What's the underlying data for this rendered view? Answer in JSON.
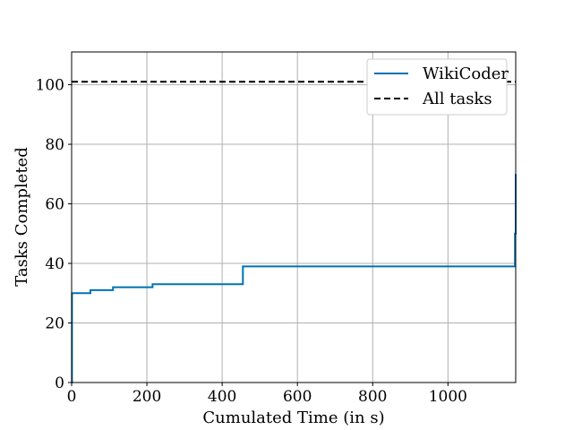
{
  "chart_data": {
    "type": "line",
    "xlabel": "Cumulated Time (in s)",
    "ylabel": "Tasks Completed",
    "xlim": [
      0,
      1180
    ],
    "ylim": [
      0,
      111
    ],
    "xticks": [
      0,
      200,
      400,
      600,
      800,
      1000
    ],
    "yticks": [
      0,
      20,
      40,
      60,
      80,
      100
    ],
    "grid": true,
    "legend_position": "top-right",
    "series": [
      {
        "name": "WikiCoder",
        "color": "#0072b2",
        "style": "solid",
        "step": "post",
        "x": [
          0,
          1,
          50,
          110,
          170,
          215,
          455,
          1175,
          1178,
          1180
        ],
        "y": [
          0,
          30,
          31,
          32,
          32,
          33,
          39,
          39,
          50,
          70
        ]
      },
      {
        "name": "All tasks",
        "color": "#000000",
        "style": "dashed",
        "x": [
          0,
          1180
        ],
        "y": [
          101,
          101
        ]
      }
    ]
  }
}
